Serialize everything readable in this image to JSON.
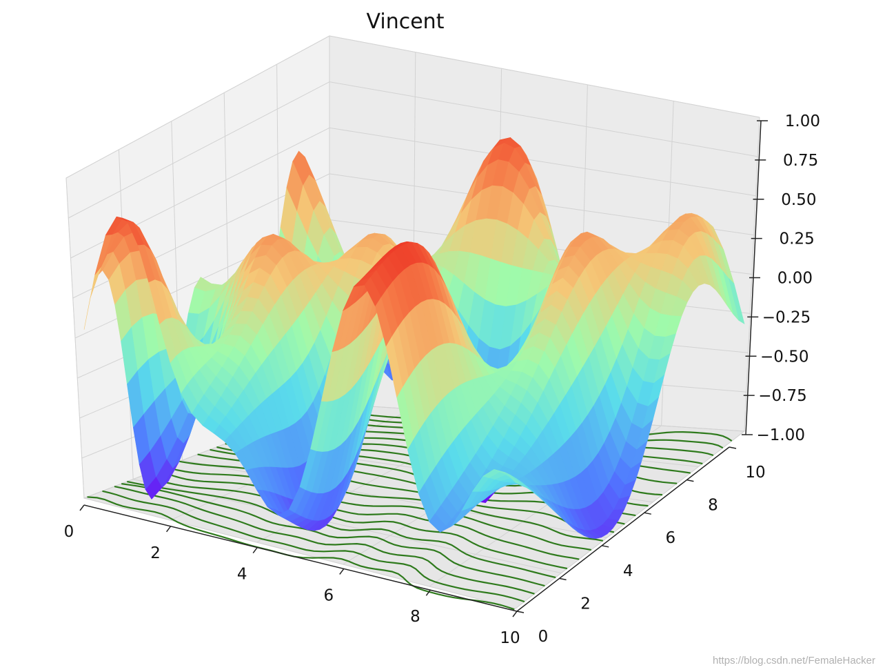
{
  "chart_data": {
    "type": "surface3d",
    "title": "Vincent",
    "function": "sin(sqrt(x^2 + y^2)) style surface over a 0..10 grid",
    "colormap": "rainbow",
    "x_ticks": [
      "0",
      "2",
      "4",
      "6",
      "8",
      "10"
    ],
    "y_ticks": [
      "0",
      "2",
      "4",
      "6",
      "8",
      "10"
    ],
    "z_ticks": [
      "−1.00",
      "−0.75",
      "−0.50",
      "−0.25",
      "0.00",
      "0.25",
      "0.50",
      "0.75",
      "1.00"
    ],
    "xlim": [
      0,
      10
    ],
    "ylim": [
      0,
      10
    ],
    "zlim": [
      -1,
      1
    ],
    "contour_color": "#2e7a1c",
    "pane_color": "#f2f2f2",
    "grid": true
  },
  "watermark": "https://blog.csdn.net/FemaleHacker"
}
